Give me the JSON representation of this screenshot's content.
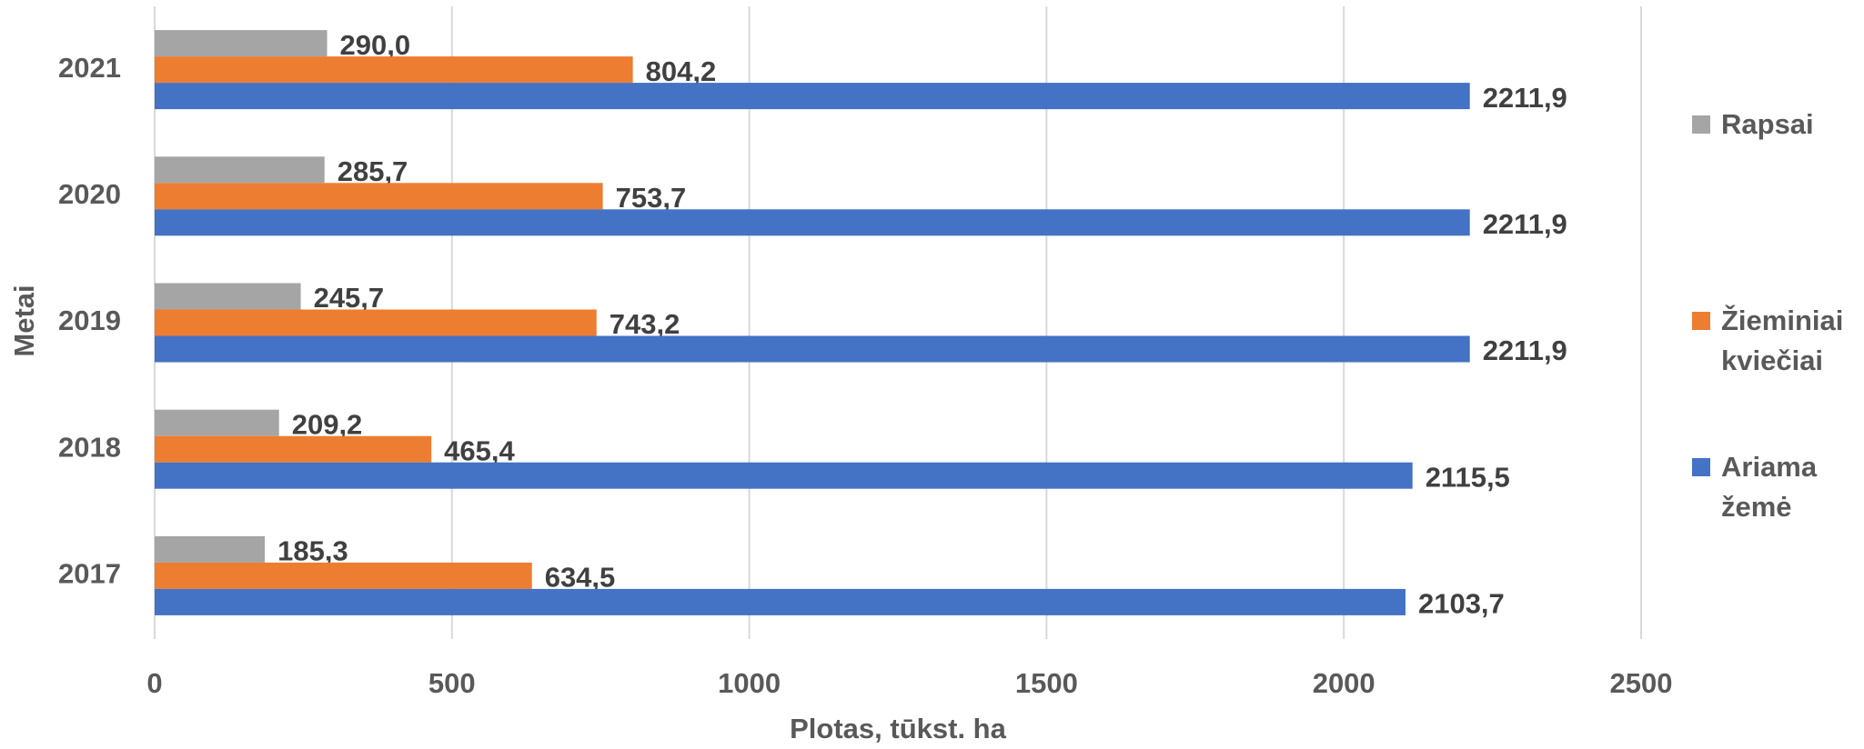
{
  "chart_data": {
    "type": "hbar",
    "x_label": "Plotas, tūkst. ha",
    "y_label": "Metai",
    "categories": [
      "2017",
      "2018",
      "2019",
      "2020",
      "2021"
    ],
    "series": [
      {
        "name": "Rapsai",
        "color": "#a5a5a5",
        "values": [
          185.3,
          209.2,
          245.7,
          285.7,
          290.0
        ],
        "value_labels": [
          "185,3",
          "209,2",
          "245,7",
          "285,7",
          "290,0"
        ]
      },
      {
        "name": "Žieminiai kviečiai",
        "color": "#ed7d31",
        "values": [
          634.5,
          465.4,
          743.2,
          753.7,
          804.2
        ],
        "value_labels": [
          "634,5",
          "465,4",
          "743,2",
          "753,7",
          "804,2"
        ]
      },
      {
        "name": "Ariama žemė",
        "color": "#4472c4",
        "values": [
          2103.7,
          2115.5,
          2211.9,
          2211.9,
          2211.9
        ],
        "value_labels": [
          "2103,7",
          "2115,5",
          "2211,9",
          "2211,9",
          "2211,9"
        ]
      }
    ],
    "xlim": [
      0,
      2500
    ],
    "xticks": [
      0,
      500,
      1000,
      1500,
      2000,
      2500
    ],
    "grid": true,
    "legend": "right"
  }
}
